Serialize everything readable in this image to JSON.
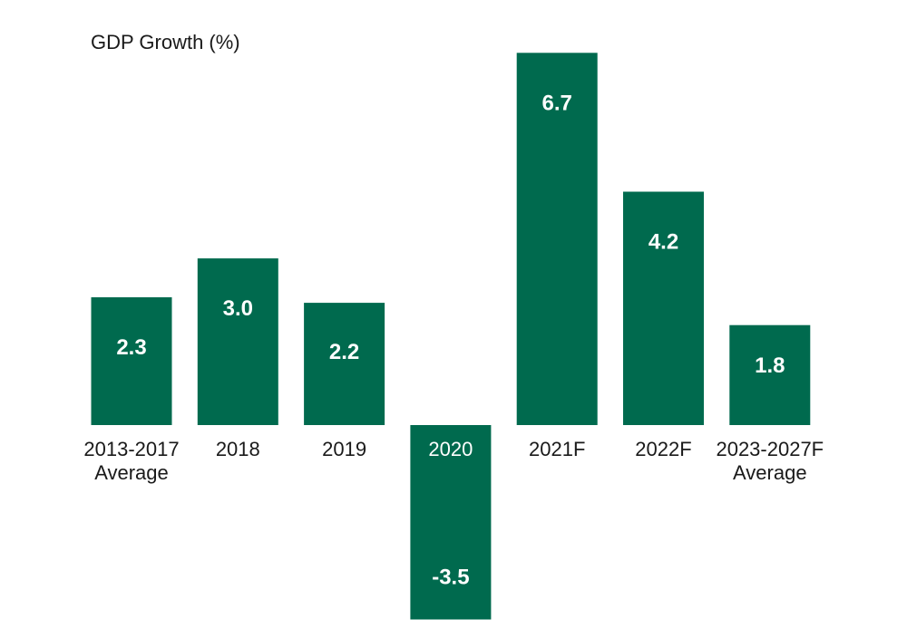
{
  "chart_data": {
    "type": "bar",
    "title": "GDP Growth (%)",
    "xlabel": "",
    "ylabel": "",
    "categories": [
      [
        "2013-2017",
        "Average"
      ],
      [
        "2018"
      ],
      [
        "2019"
      ],
      [
        "2020"
      ],
      [
        "2021F"
      ],
      [
        "2022F"
      ],
      [
        "2023-2027F",
        "Average"
      ]
    ],
    "values": [
      2.3,
      3.0,
      2.2,
      -3.5,
      6.7,
      4.2,
      1.8
    ],
    "value_labels": [
      "2.3",
      "3.0",
      "2.2",
      "-3.5",
      "6.7",
      "4.2",
      "1.8"
    ],
    "ylim": [
      -3.5,
      6.7
    ],
    "grid": false,
    "legend": "none",
    "colors": {
      "bar": "#006a4e",
      "text": "#1a1a1a",
      "inverse_text": "#ffffff"
    }
  }
}
